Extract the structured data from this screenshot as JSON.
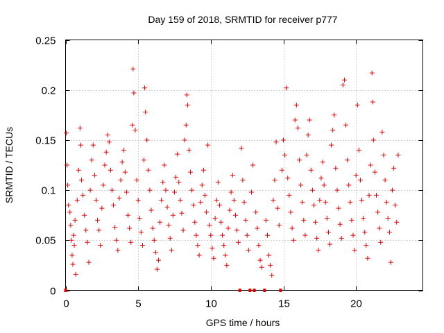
{
  "chart_data": {
    "type": "scatter",
    "title": "Day 159 of 2018, SRMTID for receiver p777",
    "xlabel": "GPS time / hours",
    "ylabel": "SRMTID / TECUs",
    "xlim": [
      0,
      24.6
    ],
    "ylim": [
      0,
      0.25
    ],
    "xticks": [
      0,
      5,
      10,
      15,
      20
    ],
    "xtick_labels": [
      "0",
      "5",
      "10",
      "15",
      "20"
    ],
    "yticks": [
      0,
      0.05,
      0.1,
      0.15,
      0.2,
      0.25
    ],
    "ytick_labels": [
      "0",
      "0.05",
      "0.1",
      "0.15",
      "0.2",
      "0.25"
    ],
    "grid": true,
    "marker": "+",
    "color": "#e00000",
    "series": [
      {
        "name": "SRMTID",
        "points": [
          [
            0.0,
            0.0
          ],
          [
            0.05,
            0.157
          ],
          [
            0.1,
            0.125
          ],
          [
            0.15,
            0.105
          ],
          [
            0.2,
            0.085
          ],
          [
            0.3,
            0.078
          ],
          [
            0.35,
            0.065
          ],
          [
            0.4,
            0.05
          ],
          [
            0.45,
            0.035
          ],
          [
            0.5,
            0.026
          ],
          [
            0.55,
            0.055
          ],
          [
            0.6,
            0.045
          ],
          [
            0.65,
            0.07
          ],
          [
            0.7,
            0.016
          ],
          [
            0.8,
            0.09
          ],
          [
            0.9,
            0.12
          ],
          [
            1.0,
            0.162
          ],
          [
            1.05,
            0.145
          ],
          [
            1.1,
            0.11
          ],
          [
            1.2,
            0.095
          ],
          [
            1.3,
            0.075
          ],
          [
            1.4,
            0.06
          ],
          [
            1.5,
            0.048
          ],
          [
            1.6,
            0.028
          ],
          [
            1.7,
            0.1
          ],
          [
            1.8,
            0.13
          ],
          [
            1.9,
            0.145
          ],
          [
            2.0,
            0.115
          ],
          [
            2.1,
            0.09
          ],
          [
            2.2,
            0.07
          ],
          [
            2.3,
            0.06
          ],
          [
            2.4,
            0.045
          ],
          [
            2.5,
            0.082
          ],
          [
            2.6,
            0.105
          ],
          [
            2.7,
            0.125
          ],
          [
            2.8,
            0.138
          ],
          [
            2.9,
            0.155
          ],
          [
            3.0,
            0.148
          ],
          [
            3.1,
            0.12
          ],
          [
            3.2,
            0.1
          ],
          [
            3.3,
            0.085
          ],
          [
            3.4,
            0.063
          ],
          [
            3.5,
            0.05
          ],
          [
            3.6,
            0.04
          ],
          [
            3.7,
            0.092
          ],
          [
            3.8,
            0.11
          ],
          [
            3.9,
            0.128
          ],
          [
            4.0,
            0.14
          ],
          [
            4.1,
            0.118
          ],
          [
            4.2,
            0.098
          ],
          [
            4.3,
            0.075
          ],
          [
            4.4,
            0.062
          ],
          [
            4.5,
            0.048
          ],
          [
            4.6,
            0.165
          ],
          [
            4.65,
            0.221
          ],
          [
            4.7,
            0.197
          ],
          [
            4.8,
            0.16
          ],
          [
            4.9,
            0.11
          ],
          [
            5.0,
            0.09
          ],
          [
            5.1,
            0.072
          ],
          [
            5.2,
            0.058
          ],
          [
            5.3,
            0.045
          ],
          [
            5.4,
            0.13
          ],
          [
            5.45,
            0.202
          ],
          [
            5.5,
            0.178
          ],
          [
            5.6,
            0.15
          ],
          [
            5.7,
            0.12
          ],
          [
            5.8,
            0.1
          ],
          [
            5.9,
            0.08
          ],
          [
            6.0,
            0.062
          ],
          [
            6.1,
            0.05
          ],
          [
            6.2,
            0.038
          ],
          [
            6.3,
            0.021
          ],
          [
            6.4,
            0.03
          ],
          [
            6.5,
            0.068
          ],
          [
            6.6,
            0.09
          ],
          [
            6.7,
            0.108
          ],
          [
            6.8,
            0.125
          ],
          [
            6.9,
            0.1
          ],
          [
            7.0,
            0.083
          ],
          [
            7.1,
            0.065
          ],
          [
            7.2,
            0.052
          ],
          [
            7.3,
            0.04
          ],
          [
            7.4,
            0.075
          ],
          [
            7.5,
            0.098
          ],
          [
            7.6,
            0.113
          ],
          [
            7.7,
            0.136
          ],
          [
            7.8,
            0.108
          ],
          [
            7.9,
            0.09
          ],
          [
            8.0,
            0.077
          ],
          [
            8.1,
            0.06
          ],
          [
            8.2,
            0.15
          ],
          [
            8.3,
            0.165
          ],
          [
            8.35,
            0.195
          ],
          [
            8.4,
            0.185
          ],
          [
            8.5,
            0.14
          ],
          [
            8.6,
            0.118
          ],
          [
            8.7,
            0.1
          ],
          [
            8.8,
            0.085
          ],
          [
            8.9,
            0.068
          ],
          [
            9.0,
            0.055
          ],
          [
            9.1,
            0.045
          ],
          [
            9.2,
            0.035
          ],
          [
            9.3,
            0.088
          ],
          [
            9.4,
            0.105
          ],
          [
            9.5,
            0.12
          ],
          [
            9.6,
            0.095
          ],
          [
            9.7,
            0.078
          ],
          [
            9.8,
            0.145
          ],
          [
            9.9,
            0.065
          ],
          [
            10.0,
            0.055
          ],
          [
            10.1,
            0.042
          ],
          [
            10.2,
            0.032
          ],
          [
            10.3,
            0.072
          ],
          [
            10.4,
            0.09
          ],
          [
            10.5,
            0.108
          ],
          [
            10.6,
            0.085
          ],
          [
            10.7,
            0.068
          ],
          [
            10.8,
            0.055
          ],
          [
            10.9,
            0.045
          ],
          [
            11.0,
            0.035
          ],
          [
            11.1,
            0.025
          ],
          [
            11.2,
            0.062
          ],
          [
            11.3,
            0.08
          ],
          [
            11.4,
            0.098
          ],
          [
            11.5,
            0.115
          ],
          [
            11.6,
            0.09
          ],
          [
            11.7,
            0.075
          ],
          [
            11.8,
            0.06
          ],
          [
            11.9,
            0.048
          ],
          [
            12.0,
            0.0
          ],
          [
            12.1,
            0.142
          ],
          [
            12.2,
            0.11
          ],
          [
            12.3,
            0.088
          ],
          [
            12.4,
            0.07
          ],
          [
            12.5,
            0.055
          ],
          [
            12.6,
            0.04
          ],
          [
            12.7,
            0.0
          ],
          [
            12.8,
            0.098
          ],
          [
            12.9,
            0.125
          ],
          [
            13.0,
            0.0
          ],
          [
            13.1,
            0.078
          ],
          [
            13.2,
            0.062
          ],
          [
            13.3,
            0.045
          ],
          [
            13.4,
            0.03
          ],
          [
            13.5,
            0.023
          ],
          [
            13.7,
            0.0
          ],
          [
            13.8,
            0.07
          ],
          [
            13.9,
            0.055
          ],
          [
            14.0,
            0.035
          ],
          [
            14.1,
            0.025
          ],
          [
            14.2,
            0.015
          ],
          [
            14.3,
            0.09
          ],
          [
            14.4,
            0.11
          ],
          [
            14.5,
            0.148
          ],
          [
            14.6,
            0.082
          ],
          [
            14.7,
            0.065
          ],
          [
            14.8,
            0.0
          ],
          [
            14.9,
            0.12
          ],
          [
            15.0,
            0.15
          ],
          [
            15.1,
            0.135
          ],
          [
            15.2,
            0.202
          ],
          [
            15.3,
            0.112
          ],
          [
            15.4,
            0.095
          ],
          [
            15.5,
            0.078
          ],
          [
            15.6,
            0.062
          ],
          [
            15.7,
            0.05
          ],
          [
            15.8,
            0.17
          ],
          [
            15.9,
            0.185
          ],
          [
            16.0,
            0.162
          ],
          [
            16.1,
            0.13
          ],
          [
            16.2,
            0.105
          ],
          [
            16.3,
            0.088
          ],
          [
            16.4,
            0.07
          ],
          [
            16.5,
            0.055
          ],
          [
            16.6,
            0.135
          ],
          [
            16.7,
            0.155
          ],
          [
            16.8,
            0.17
          ],
          [
            16.9,
            0.12
          ],
          [
            17.0,
            0.1
          ],
          [
            17.1,
            0.085
          ],
          [
            17.2,
            0.068
          ],
          [
            17.3,
            0.052
          ],
          [
            17.4,
            0.04
          ],
          [
            17.5,
            0.09
          ],
          [
            17.6,
            0.112
          ],
          [
            17.7,
            0.128
          ],
          [
            17.8,
            0.105
          ],
          [
            17.9,
            0.088
          ],
          [
            18.0,
            0.072
          ],
          [
            18.1,
            0.058
          ],
          [
            18.2,
            0.046
          ],
          [
            18.3,
            0.145
          ],
          [
            18.4,
            0.16
          ],
          [
            18.5,
            0.175
          ],
          [
            18.6,
            0.122
          ],
          [
            18.7,
            0.1
          ],
          [
            18.8,
            0.082
          ],
          [
            18.9,
            0.066
          ],
          [
            19.0,
            0.052
          ],
          [
            19.1,
            0.205
          ],
          [
            19.2,
            0.21
          ],
          [
            19.3,
            0.165
          ],
          [
            19.4,
            0.13
          ],
          [
            19.5,
            0.105
          ],
          [
            19.6,
            0.088
          ],
          [
            19.7,
            0.07
          ],
          [
            19.8,
            0.055
          ],
          [
            19.9,
            0.04
          ],
          [
            20.0,
            0.115
          ],
          [
            20.1,
            0.185
          ],
          [
            20.2,
            0.14
          ],
          [
            20.3,
            0.11
          ],
          [
            20.4,
            0.09
          ],
          [
            20.5,
            0.072
          ],
          [
            20.6,
            0.058
          ],
          [
            20.7,
            0.045
          ],
          [
            20.8,
            0.032
          ],
          [
            20.9,
            0.095
          ],
          [
            21.0,
            0.125
          ],
          [
            21.1,
            0.217
          ],
          [
            21.15,
            0.188
          ],
          [
            21.2,
            0.15
          ],
          [
            21.3,
            0.118
          ],
          [
            21.4,
            0.095
          ],
          [
            21.5,
            0.078
          ],
          [
            21.6,
            0.062
          ],
          [
            21.7,
            0.048
          ],
          [
            21.8,
            0.158
          ],
          [
            21.9,
            0.135
          ],
          [
            22.0,
            0.11
          ],
          [
            22.1,
            0.088
          ],
          [
            22.2,
            0.072
          ],
          [
            22.3,
            0.058
          ],
          [
            22.4,
            0.028
          ],
          [
            22.5,
            0.1
          ],
          [
            22.6,
            0.122
          ],
          [
            22.7,
            0.085
          ],
          [
            22.8,
            0.068
          ],
          [
            22.9,
            0.135
          ]
        ]
      }
    ]
  }
}
